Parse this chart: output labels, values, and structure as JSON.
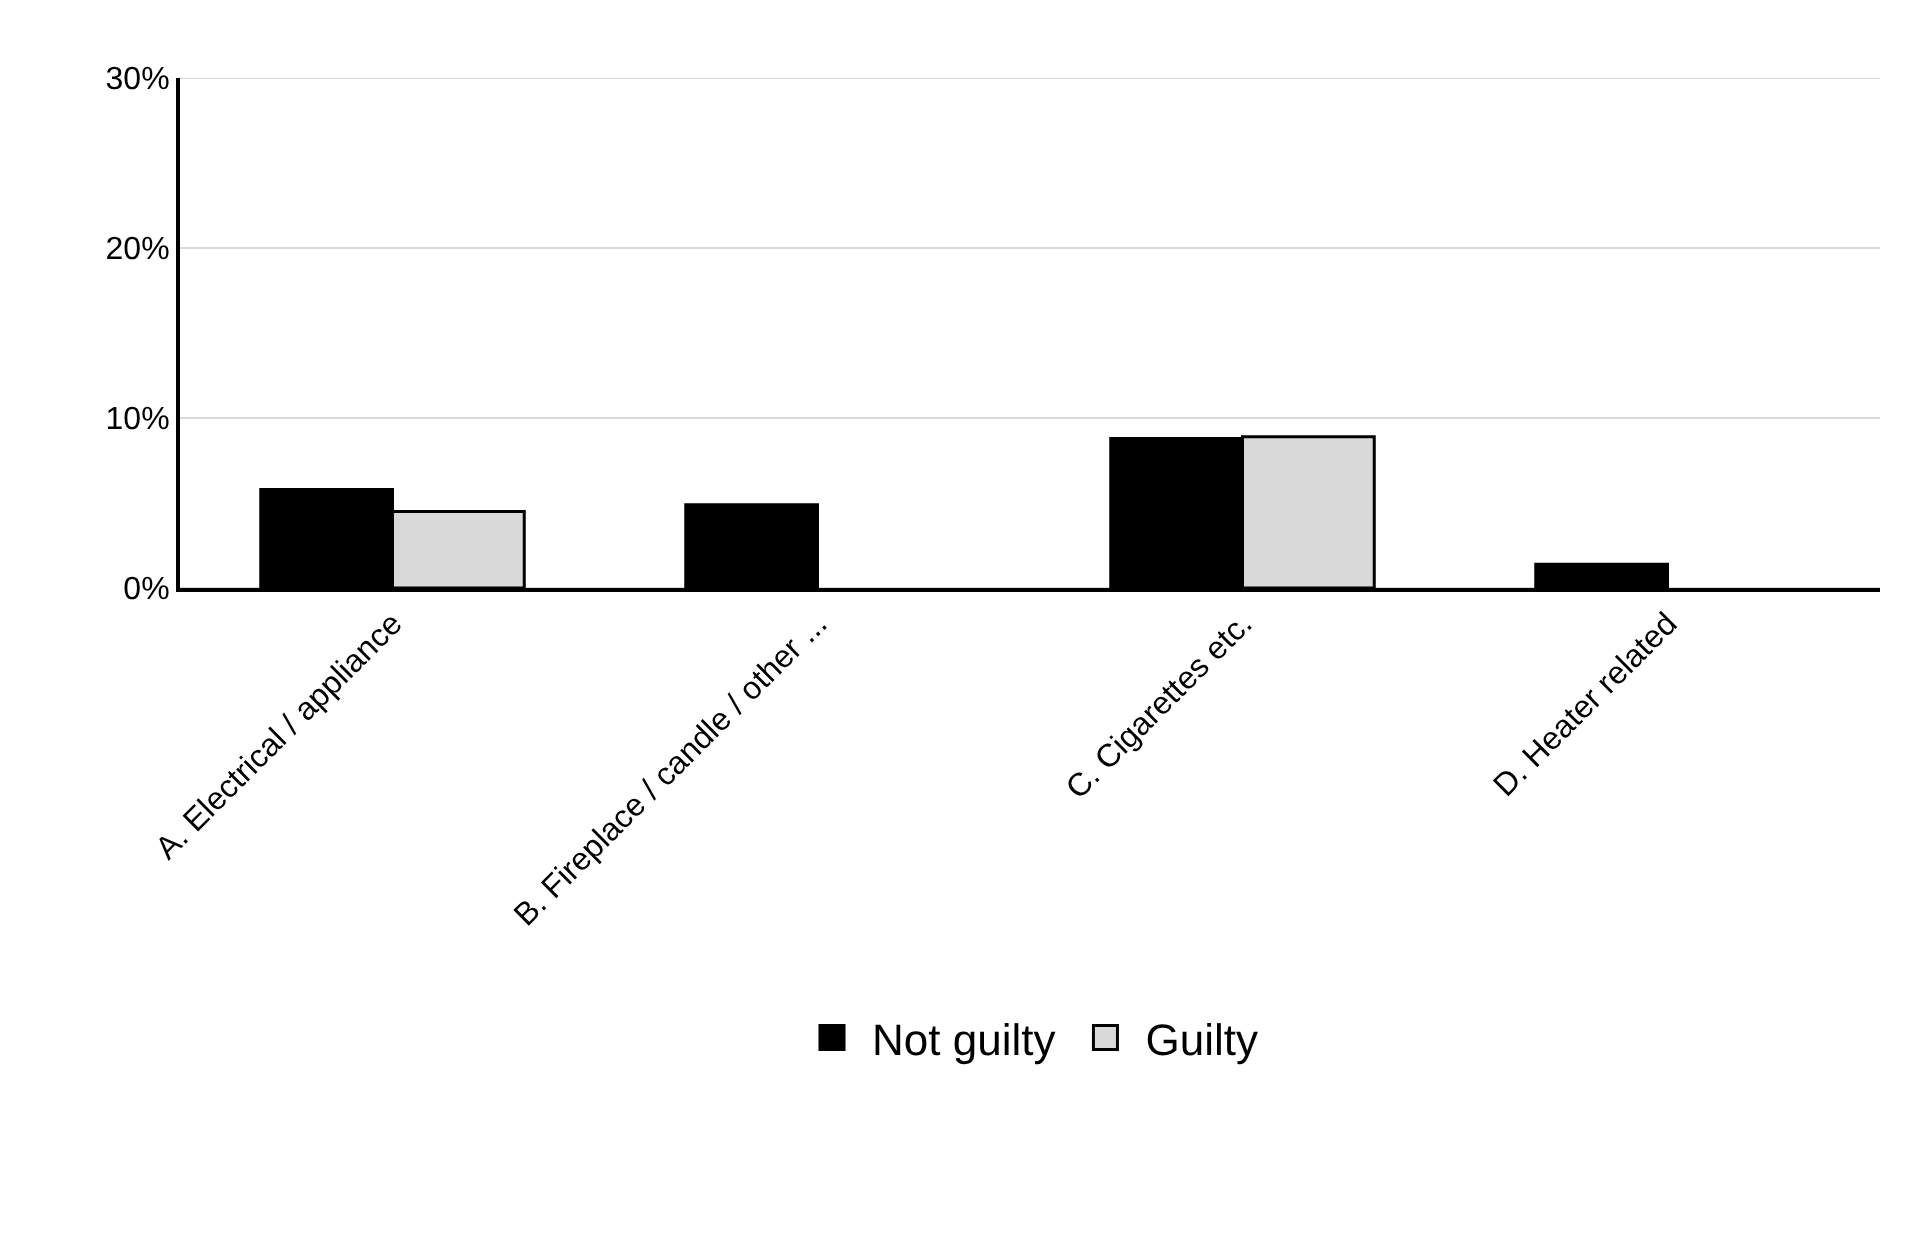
{
  "chart_data": {
    "type": "bar",
    "categories": [
      "A. Electrical / appliance",
      "B. Fireplace / candle / other ...",
      "C. Cigarettes etc.",
      "D. Heater related"
    ],
    "series": [
      {
        "name": "Not guilty",
        "color": "#000000",
        "values": [
          5.8,
          4.9,
          8.8,
          1.4
        ]
      },
      {
        "name": "Guilty",
        "color": "#d9d9d9",
        "values": [
          4.5,
          null,
          8.9,
          null
        ]
      }
    ],
    "ylim": [
      0,
      30
    ],
    "yticks": [
      {
        "value": 0,
        "label": "0%"
      },
      {
        "value": 10,
        "label": "10%"
      },
      {
        "value": 20,
        "label": "20%"
      },
      {
        "value": 30,
        "label": "30%"
      }
    ],
    "grid": "y",
    "legend": "bottom"
  }
}
